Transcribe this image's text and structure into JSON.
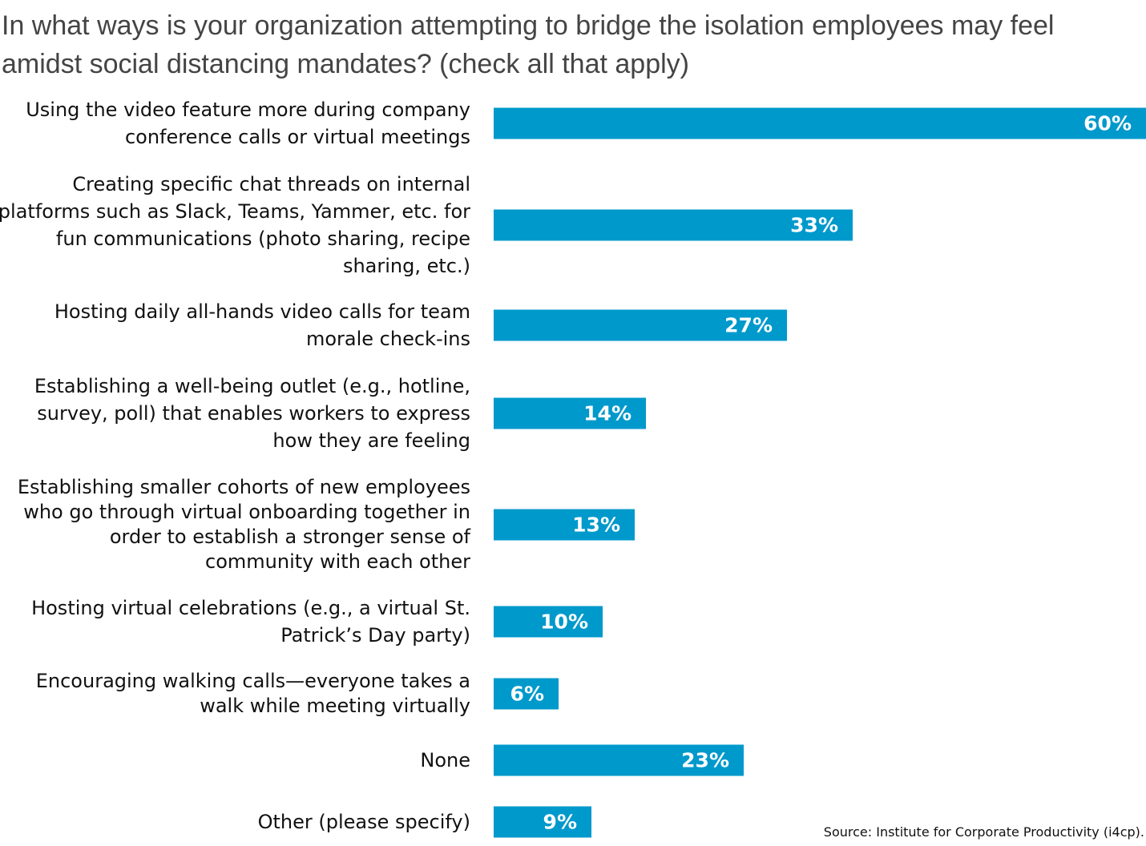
{
  "chart_data": {
    "type": "bar",
    "orientation": "horizontal",
    "title": "In what ways is your organization attempting to bridge the isolation employees may feel amidst social distancing mandates? (check all that apply)",
    "categories": [
      "Using the video feature more during company conference calls or virtual meetings",
      "Creating specific chat threads on internal platforms such as Slack, Teams, Yammer, etc. for fun communications (photo sharing, recipe sharing, etc.)",
      "Hosting daily all-hands video calls for team morale check-ins",
      "Establishing a well-being outlet (e.g., hotline, survey, poll) that enables workers to express how they are feeling",
      "Establishing smaller cohorts of new employees who go through virtual onboarding together in order to establish a stronger sense of community with each other",
      "Hosting virtual celebrations (e.g., a virtual St. Patrick’s Day party)",
      "Encouraging walking calls—everyone takes a walk while meeting virtually",
      "None",
      "Other (please specify)"
    ],
    "values": [
      60,
      33,
      27,
      14,
      13,
      10,
      6,
      23,
      9
    ],
    "data_labels": [
      "60%",
      "33%",
      "27%",
      "14%",
      "13%",
      "10%",
      "6%",
      "23%",
      "9%"
    ],
    "unit": "%",
    "xlim": [
      0,
      60
    ],
    "grid": false,
    "bar_color": "#0099cc",
    "label_color": "#ffffff",
    "source": "Source: Institute for Corporate Productivity (i4cp)."
  }
}
